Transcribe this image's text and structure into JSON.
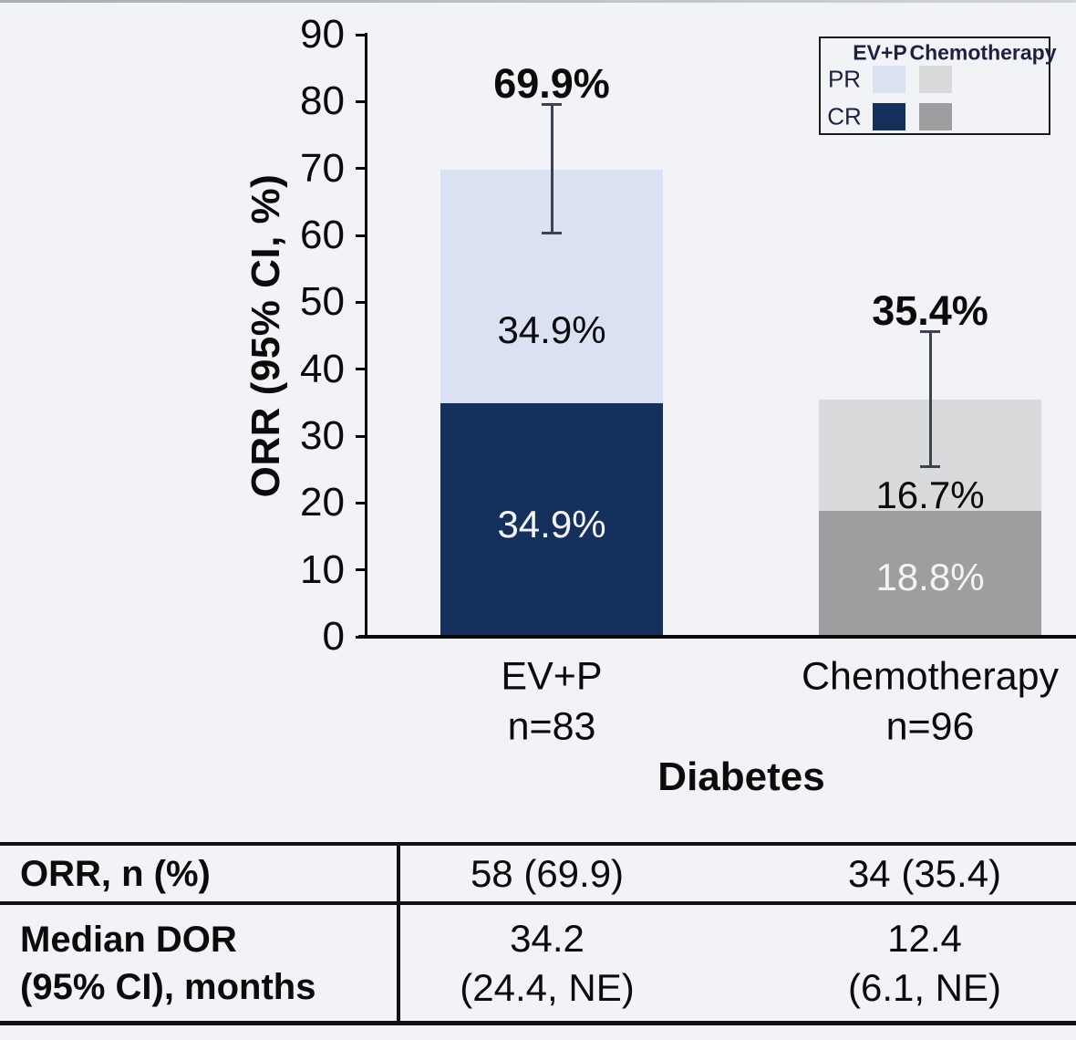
{
  "page": {
    "background": "#f2f3f6"
  },
  "chart_data": {
    "type": "bar",
    "stacked": true,
    "title": "",
    "ylabel": "ORR (95% CI, %)",
    "group_label": "Diabetes",
    "ylim": [
      0,
      90
    ],
    "yticks": [
      0,
      10,
      20,
      30,
      40,
      50,
      60,
      70,
      80,
      90
    ],
    "grid": false,
    "legend_position": "top-right",
    "categories": [
      "EV+P",
      "Chemotherapy"
    ],
    "category_counts": [
      "n=83",
      "n=96"
    ],
    "series": [
      {
        "name": "CR",
        "values": [
          34.9,
          18.8
        ]
      },
      {
        "name": "PR",
        "values": [
          34.9,
          16.7
        ]
      }
    ],
    "totals": [
      69.9,
      35.4
    ],
    "total_labels": [
      "69.9%",
      "35.4%"
    ],
    "segment_labels": {
      "evp_pr": "34.9%",
      "evp_cr": "34.9%",
      "chemo_pr": "16.7%",
      "chemo_cr": "18.8%"
    },
    "error_bars": [
      {
        "low": 60.2,
        "high": 79.8
      },
      {
        "low": 25.2,
        "high": 45.8
      }
    ],
    "colors": {
      "evp_pr": "#d9e1f2",
      "evp_cr": "#16305e",
      "chemo_pr": "#d9dadc",
      "chemo_cr": "#9d9ea0",
      "error_bar": "#3f4050",
      "axis": "#0a0a0a"
    },
    "legend": {
      "col_headers": [
        "EV+P",
        "Chemotherapy"
      ],
      "row_labels": [
        "PR",
        "CR"
      ]
    }
  },
  "table": {
    "rows": [
      {
        "label": "ORR, n (%)",
        "evp": "58 (69.9)",
        "chemo": "34 (35.4)"
      },
      {
        "label_lines": [
          "Median DOR",
          "(95% CI), months"
        ],
        "evp_lines": [
          "34.2",
          "(24.4, NE)"
        ],
        "chemo_lines": [
          "12.4",
          "(6.1, NE)"
        ]
      }
    ]
  }
}
